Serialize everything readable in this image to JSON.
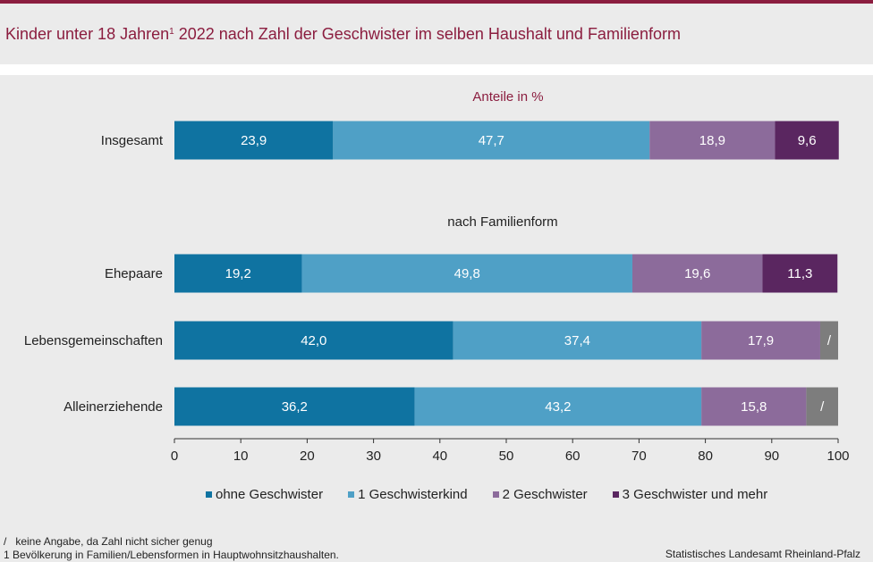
{
  "title": {
    "text_before": "Kinder unter 18 Jahren",
    "superscript": "1",
    "text_after": " 2022 nach Zahl der Geschwister im selben Haushalt und Familienform"
  },
  "colors": {
    "accent": "#8b1d3f",
    "ohne": "#0f73a1",
    "eins": "#4fa0c6",
    "zwei": "#8c6b9b",
    "drei": "#5a2660",
    "na": "#7d7d7d"
  },
  "chart_data": {
    "type": "bar",
    "orientation": "horizontal-stacked",
    "unit_label": "Anteile in %",
    "section_label": "nach Familienform",
    "categories": [
      "Insgesamt",
      "Ehepaare",
      "Lebensgemeinschaften",
      "Alleinerziehende"
    ],
    "series": [
      {
        "name": "ohne Geschwister",
        "values": [
          23.9,
          19.2,
          42.0,
          36.2
        ],
        "labels": [
          "23,9",
          "19,2",
          "42,0",
          "36,2"
        ]
      },
      {
        "name": "1 Geschwisterkind",
        "values": [
          47.7,
          49.8,
          37.4,
          43.2
        ],
        "labels": [
          "47,7",
          "49,8",
          "37,4",
          "43,2"
        ]
      },
      {
        "name": "2 Geschwister",
        "values": [
          18.9,
          19.6,
          17.9,
          15.8
        ],
        "labels": [
          "18,9",
          "19,6",
          "17,9",
          "15,8"
        ]
      },
      {
        "name": "3 Geschwister und mehr",
        "values": [
          9.6,
          11.3,
          2.7,
          4.8
        ],
        "labels": [
          "9,6",
          "11,3",
          "/",
          "/"
        ]
      }
    ],
    "xlim": [
      0,
      100
    ],
    "xticks": [
      0,
      10,
      20,
      30,
      40,
      50,
      60,
      70,
      80,
      90,
      100
    ]
  },
  "footnotes": {
    "slash_symbol": "/",
    "slash_text": "keine Angabe,  da Zahl  nicht sicher genug",
    "note1": "1 Bevölkerung  in Familien/Lebensformen  in Hauptwohnsitzhaushalten."
  },
  "source": "Statistisches Landesamt  Rheinland-Pfalz"
}
